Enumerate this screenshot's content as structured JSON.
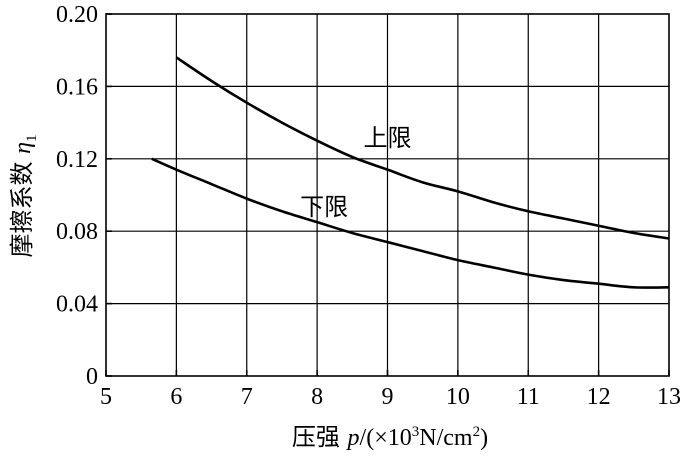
{
  "chart_data": {
    "type": "line",
    "xlim": [
      5,
      13
    ],
    "ylim": [
      0,
      0.2
    ],
    "xticks": [
      5,
      6,
      7,
      8,
      9,
      10,
      11,
      12,
      13
    ],
    "yticks": [
      0,
      0.04,
      0.08,
      0.12,
      0.16,
      0.2
    ],
    "xtick_labels": [
      "5",
      "6",
      "7",
      "8",
      "9",
      "10",
      "11",
      "12",
      "13"
    ],
    "ytick_labels": [
      "0",
      "0.04",
      "0.08",
      "0.12",
      "0.16",
      "0.20"
    ],
    "grid": true,
    "xlabel": {
      "prefix": "压强 ",
      "var": "p",
      "mid": "/(×10",
      "sup": "3",
      "unit": "N/cm",
      "sup2": "2",
      "end": ")"
    },
    "ylabel": {
      "prefix": "摩擦系数 ",
      "var": "η",
      "sub": "1"
    },
    "series": [
      {
        "name": "上限",
        "x": [
          6.0,
          6.5,
          7.0,
          7.5,
          8.0,
          8.5,
          9.0,
          9.5,
          10.0,
          10.5,
          11.0,
          11.5,
          12.0,
          12.5,
          13.0
        ],
        "y": [
          0.176,
          0.163,
          0.151,
          0.14,
          0.13,
          0.121,
          0.114,
          0.107,
          0.102,
          0.096,
          0.091,
          0.087,
          0.083,
          0.079,
          0.076
        ]
      },
      {
        "name": "下限",
        "x": [
          5.65,
          6.0,
          6.5,
          7.0,
          7.5,
          8.0,
          8.5,
          9.0,
          9.5,
          10.0,
          10.5,
          11.0,
          11.5,
          12.0,
          12.5,
          13.0
        ],
        "y": [
          0.12,
          0.114,
          0.106,
          0.098,
          0.091,
          0.085,
          0.079,
          0.074,
          0.069,
          0.064,
          0.06,
          0.056,
          0.053,
          0.051,
          0.049,
          0.049
        ]
      }
    ],
    "annotations": [
      {
        "text": "上限",
        "x": 9.0,
        "y": 0.132
      },
      {
        "text": "下限",
        "x": 8.1,
        "y": 0.094
      }
    ]
  }
}
